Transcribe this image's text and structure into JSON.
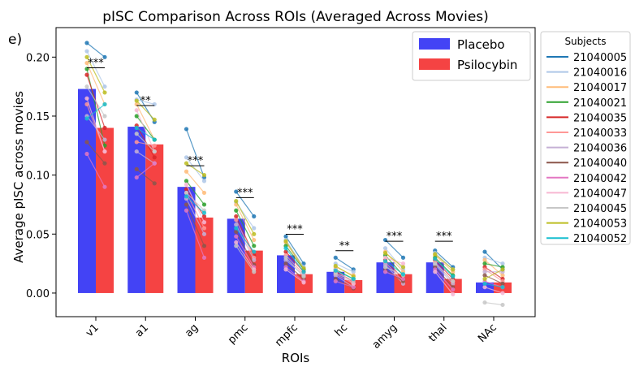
{
  "panel_label": "e)",
  "chart_data": {
    "type": "bar",
    "title": "pISC Comparison Across ROIs (Averaged Across Movies)",
    "xlabel": "ROIs",
    "ylabel": "Average pISC across movies",
    "ylim": [
      -0.02,
      0.225
    ],
    "yticks": [
      0.0,
      0.05,
      0.1,
      0.15,
      0.2
    ],
    "ytick_labels": [
      "0.00",
      "0.05",
      "0.10",
      "0.15",
      "0.20"
    ],
    "categories": [
      "v1",
      "a1",
      "ag",
      "pmc",
      "mpfc",
      "hc",
      "amyg",
      "thal",
      "NAc"
    ],
    "series": [
      {
        "name": "Placebo",
        "color": "#4343f5",
        "values": [
          0.173,
          0.141,
          0.09,
          0.063,
          0.032,
          0.018,
          0.026,
          0.026,
          0.009
        ]
      },
      {
        "name": "Psilocybin",
        "color": "#f54343",
        "values": [
          0.14,
          0.126,
          0.064,
          0.036,
          0.016,
          0.011,
          0.016,
          0.012,
          0.009
        ]
      }
    ],
    "significance": [
      "***",
      "**",
      "***",
      "***",
      "***",
      "**",
      "***",
      "***",
      ""
    ],
    "legend": {
      "placement": "top-right",
      "entries": [
        "Placebo",
        "Psilocybin"
      ]
    },
    "subjects_legend": {
      "title": "Subjects",
      "placement": "outside-right",
      "entries": [
        {
          "label": "21040005",
          "color": "#1f77b4"
        },
        {
          "label": "21040016",
          "color": "#aec7e8"
        },
        {
          "label": "21040017",
          "color": "#ffbb78"
        },
        {
          "label": "21040021",
          "color": "#2ca02c"
        },
        {
          "label": "21040035",
          "color": "#d62728"
        },
        {
          "label": "21040033",
          "color": "#ff9896"
        },
        {
          "label": "21040036",
          "color": "#c5b0d5"
        },
        {
          "label": "21040040",
          "color": "#8c564b"
        },
        {
          "label": "21040042",
          "color": "#e377c2"
        },
        {
          "label": "21040047",
          "color": "#f7b6d2"
        },
        {
          "label": "21040045",
          "color": "#c7c7c7"
        },
        {
          "label": "21040053",
          "color": "#bcbd22"
        },
        {
          "label": "21040052",
          "color": "#17becf"
        }
      ]
    },
    "subject_points": {
      "v1": [
        [
          0.212,
          0.2
        ],
        [
          0.205,
          0.175
        ],
        [
          0.195,
          0.16
        ],
        [
          0.19,
          0.125
        ],
        [
          0.185,
          0.14
        ],
        [
          0.16,
          0.12
        ],
        [
          0.15,
          0.13
        ],
        [
          0.128,
          0.11
        ],
        [
          0.118,
          0.09
        ],
        [
          0.165,
          0.12
        ],
        [
          0.175,
          0.15
        ],
        [
          0.2,
          0.17
        ],
        [
          0.148,
          0.16
        ]
      ],
      "a1": [
        [
          0.17,
          0.145
        ],
        [
          0.164,
          0.16
        ],
        [
          0.16,
          0.13
        ],
        [
          0.15,
          0.13
        ],
        [
          0.142,
          0.115
        ],
        [
          0.128,
          0.125
        ],
        [
          0.12,
          0.11
        ],
        [
          0.105,
          0.093
        ],
        [
          0.098,
          0.11
        ],
        [
          0.155,
          0.12
        ],
        [
          0.135,
          0.12
        ],
        [
          0.163,
          0.147
        ],
        [
          0.14,
          0.13
        ]
      ],
      "ag": [
        [
          0.139,
          0.098
        ],
        [
          0.115,
          0.095
        ],
        [
          0.103,
          0.085
        ],
        [
          0.095,
          0.075
        ],
        [
          0.088,
          0.065
        ],
        [
          0.085,
          0.055
        ],
        [
          0.08,
          0.05
        ],
        [
          0.075,
          0.04
        ],
        [
          0.07,
          0.03
        ],
        [
          0.092,
          0.06
        ],
        [
          0.085,
          0.07
        ],
        [
          0.11,
          0.1
        ],
        [
          0.082,
          0.068
        ]
      ],
      "pmc": [
        [
          0.086,
          0.065
        ],
        [
          0.077,
          0.055
        ],
        [
          0.075,
          0.045
        ],
        [
          0.07,
          0.04
        ],
        [
          0.065,
          0.032
        ],
        [
          0.062,
          0.03
        ],
        [
          0.058,
          0.028
        ],
        [
          0.052,
          0.024
        ],
        [
          0.048,
          0.022
        ],
        [
          0.043,
          0.02
        ],
        [
          0.04,
          0.018
        ],
        [
          0.078,
          0.05
        ],
        [
          0.055,
          0.035
        ]
      ],
      "mpfc": [
        [
          0.048,
          0.025
        ],
        [
          0.045,
          0.022
        ],
        [
          0.043,
          0.02
        ],
        [
          0.04,
          0.02
        ],
        [
          0.035,
          0.018
        ],
        [
          0.032,
          0.016
        ],
        [
          0.028,
          0.015
        ],
        [
          0.025,
          0.012
        ],
        [
          0.022,
          0.01
        ],
        [
          0.02,
          0.009
        ],
        [
          0.03,
          0.014
        ],
        [
          0.044,
          0.021
        ],
        [
          0.038,
          0.018
        ]
      ],
      "hc": [
        [
          0.03,
          0.02
        ],
        [
          0.025,
          0.018
        ],
        [
          0.022,
          0.015
        ],
        [
          0.02,
          0.012
        ],
        [
          0.018,
          0.01
        ],
        [
          0.016,
          0.008
        ],
        [
          0.015,
          0.005
        ],
        [
          0.012,
          0.004
        ],
        [
          0.01,
          0.005
        ],
        [
          0.02,
          0.008
        ],
        [
          0.017,
          0.01
        ],
        [
          0.023,
          0.014
        ],
        [
          0.019,
          0.012
        ]
      ],
      "amyg": [
        [
          0.045,
          0.03
        ],
        [
          0.038,
          0.02
        ],
        [
          0.035,
          0.018
        ],
        [
          0.032,
          0.015
        ],
        [
          0.028,
          0.012
        ],
        [
          0.026,
          0.01
        ],
        [
          0.024,
          0.008
        ],
        [
          0.02,
          0.01
        ],
        [
          0.018,
          0.012
        ],
        [
          0.03,
          0.025
        ],
        [
          0.022,
          0.015
        ],
        [
          0.034,
          0.022
        ],
        [
          0.027,
          0.016
        ]
      ],
      "thal": [
        [
          0.036,
          0.022
        ],
        [
          0.034,
          0.02
        ],
        [
          0.032,
          0.018
        ],
        [
          0.03,
          0.015
        ],
        [
          0.028,
          0.012
        ],
        [
          0.026,
          0.01
        ],
        [
          0.024,
          0.008
        ],
        [
          0.022,
          0.005
        ],
        [
          0.02,
          0.003
        ],
        [
          0.018,
          -0.001
        ],
        [
          0.025,
          0.01
        ],
        [
          0.033,
          0.02
        ],
        [
          0.029,
          0.014
        ]
      ],
      "NAc": [
        [
          0.035,
          0.02
        ],
        [
          0.03,
          0.025
        ],
        [
          0.028,
          0.015
        ],
        [
          0.025,
          0.022
        ],
        [
          0.022,
          0.012
        ],
        [
          0.02,
          0.01
        ],
        [
          0.018,
          0.018
        ],
        [
          0.015,
          0.008
        ],
        [
          0.01,
          0.005
        ],
        [
          0.005,
          0.0
        ],
        [
          -0.008,
          -0.01
        ],
        [
          0.012,
          0.02
        ],
        [
          0.008,
          0.005
        ]
      ]
    }
  }
}
